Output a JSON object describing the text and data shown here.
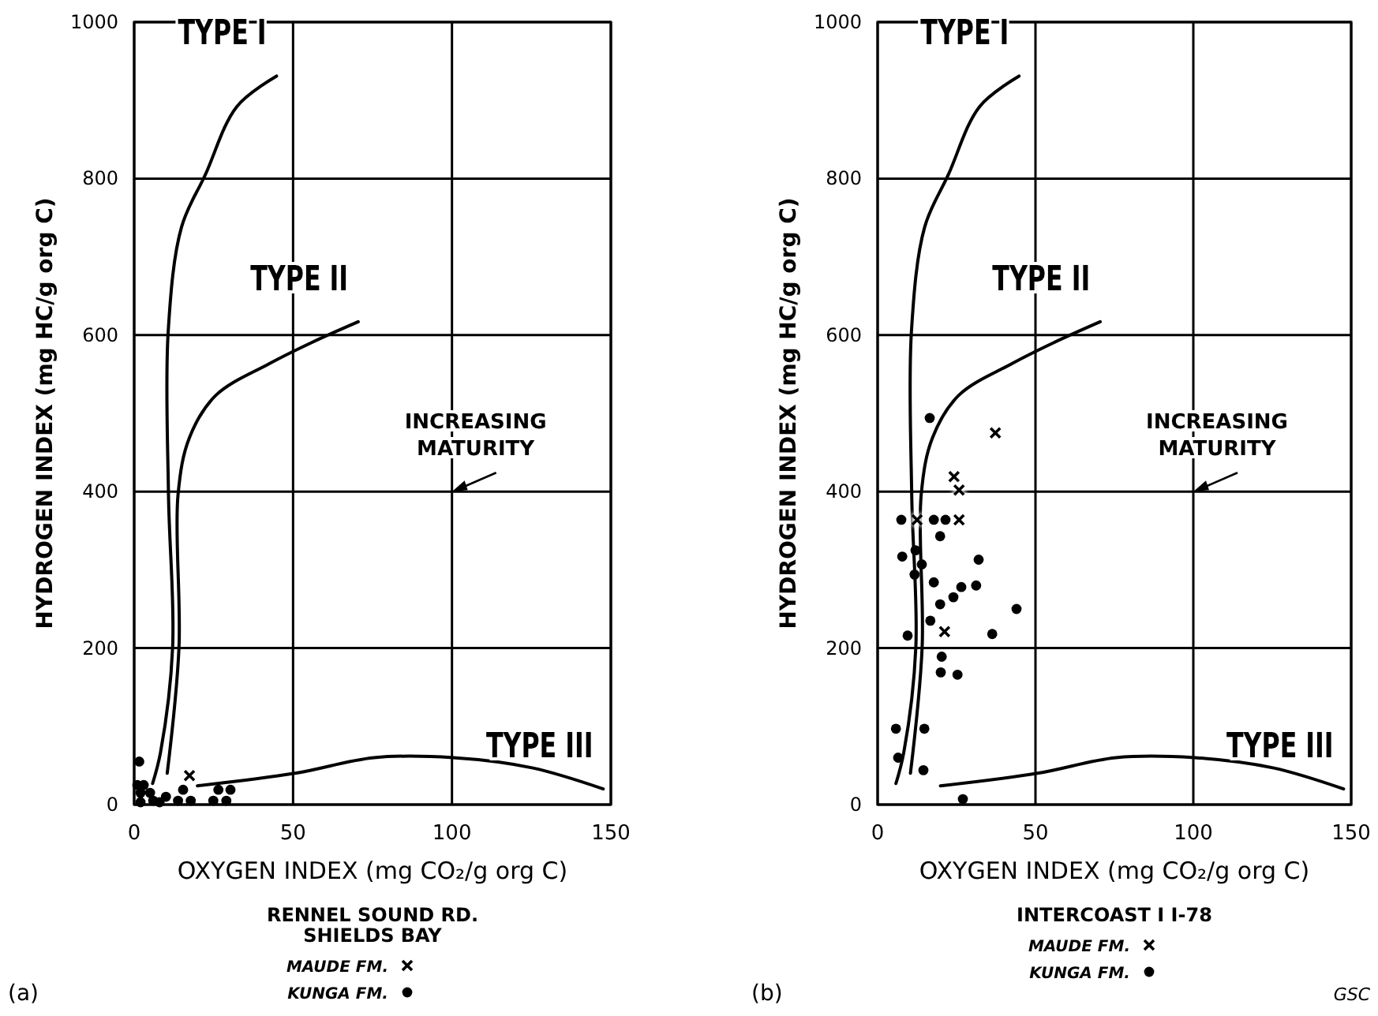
{
  "chart_data": [
    {
      "type": "scatter",
      "xlabel": "OXYGEN INDEX (mg CO₂/g org C)",
      "ylabel": "HYDROGEN INDEX (mg HC/g org C)",
      "subtitle": "RENNEL SOUND RD.\nSHIELDS BAY",
      "xlim": [
        0,
        150
      ],
      "ylim": [
        0,
        1000
      ],
      "xticks": [
        0,
        50,
        100,
        150
      ],
      "yticks": [
        0,
        200,
        400,
        600,
        800,
        1000
      ],
      "grid": true,
      "legend": "bottom",
      "annotations": [
        "INCREASING MATURITY",
        "(a)"
      ],
      "series": [
        {
          "name": "TYPE I",
          "type": "line",
          "color": "#000000",
          "marker": "none",
          "x": [
            5.8,
            8.3,
            12.1,
            10.8,
            10.7,
            14.9,
            22.4,
            32.3,
            44.8
          ],
          "values": [
            27,
            67,
            201,
            396,
            604,
            738,
            805,
            892,
            931
          ]
        },
        {
          "name": "TYPE II",
          "type": "line",
          "color": "#000000",
          "marker": "none",
          "x": [
            10.4,
            14.1,
            13.8,
            17.4,
            25.7,
            42.3,
            55.6,
            70.5
          ],
          "values": [
            40,
            201,
            396,
            469,
            523,
            563,
            590,
            617
          ]
        },
        {
          "name": "TYPE III",
          "type": "line",
          "color": "#000000",
          "marker": "none",
          "x": [
            19.9,
            50.6,
            75.5,
            100.4,
            125.2,
            147.6
          ],
          "values": [
            24,
            40,
            60,
            60,
            47,
            20
          ]
        },
        {
          "name": "MAUDE FM.",
          "type": "scatter",
          "color": "#000000",
          "marker": "cross",
          "x": [
            17.4
          ],
          "values": [
            37
          ]
        },
        {
          "name": "KUNGA FM.",
          "type": "scatter",
          "color": "#000000",
          "marker": "circle",
          "x": [
            1.6,
            2,
            3,
            1,
            6,
            8,
            2,
            5,
            10,
            13.8,
            15.4,
            17.8,
            26.5,
            30.3,
            24.9,
            29
          ],
          "values": [
            55,
            15,
            25,
            25,
            5,
            3,
            3,
            15,
            10,
            5,
            19,
            5,
            19,
            19,
            5,
            5
          ]
        }
      ]
    },
    {
      "type": "scatter",
      "xlabel": "OXYGEN INDEX (mg CO₂/g org C)",
      "ylabel": "HYDROGEN INDEX (mg HC/g org C)",
      "subtitle": "INTERCOAST I I-78",
      "xlim": [
        0,
        150
      ],
      "ylim": [
        0,
        1000
      ],
      "xticks": [
        0,
        50,
        100,
        150
      ],
      "yticks": [
        0,
        200,
        400,
        600,
        800,
        1000
      ],
      "grid": true,
      "legend": "bottom",
      "annotations": [
        "INCREASING MATURITY",
        "(b)",
        "GSC"
      ],
      "series": [
        {
          "name": "TYPE I",
          "type": "line",
          "color": "#000000",
          "marker": "none",
          "x": [
            5.8,
            8.3,
            12.1,
            10.8,
            10.7,
            14.9,
            22.4,
            32.3,
            44.8
          ],
          "values": [
            27,
            67,
            201,
            396,
            604,
            738,
            805,
            892,
            931
          ]
        },
        {
          "name": "TYPE II",
          "type": "line",
          "color": "#000000",
          "marker": "none",
          "x": [
            10.4,
            14.1,
            13.8,
            17.4,
            25.7,
            42.3,
            55.6,
            70.5
          ],
          "values": [
            40,
            201,
            396,
            469,
            523,
            563,
            590,
            617
          ]
        },
        {
          "name": "TYPE III",
          "type": "line",
          "color": "#000000",
          "marker": "none",
          "x": [
            19.9,
            50.6,
            75.5,
            100.4,
            125.2,
            147.6
          ],
          "values": [
            24,
            40,
            60,
            60,
            47,
            20
          ]
        },
        {
          "name": "MAUDE FM.",
          "type": "scatter",
          "color": "#000000",
          "marker": "cross",
          "x": [
            37.3,
            24.2,
            25.8,
            12.5,
            25.8,
            21.2
          ],
          "values": [
            475,
            419,
            402,
            364,
            364,
            221
          ]
        },
        {
          "name": "KUNGA FM.",
          "type": "scatter",
          "color": "#000000",
          "marker": "circle",
          "x": [
            16.5,
            7.5,
            17.8,
            21.5,
            19.8,
            12,
            7.8,
            14,
            32,
            11.7,
            17.8,
            26.5,
            24,
            31.2,
            19.8,
            44,
            16.7,
            9.5,
            36.3,
            20.3,
            20,
            25.3,
            5.8,
            14.8,
            6.5,
            14.5,
            27
          ],
          "values": [
            494,
            364,
            364,
            364,
            343,
            325,
            317,
            307,
            313,
            294,
            284,
            278,
            265,
            280,
            256,
            250,
            235,
            216,
            218,
            189,
            169,
            166,
            97,
            97,
            60,
            44,
            7
          ]
        }
      ]
    }
  ]
}
